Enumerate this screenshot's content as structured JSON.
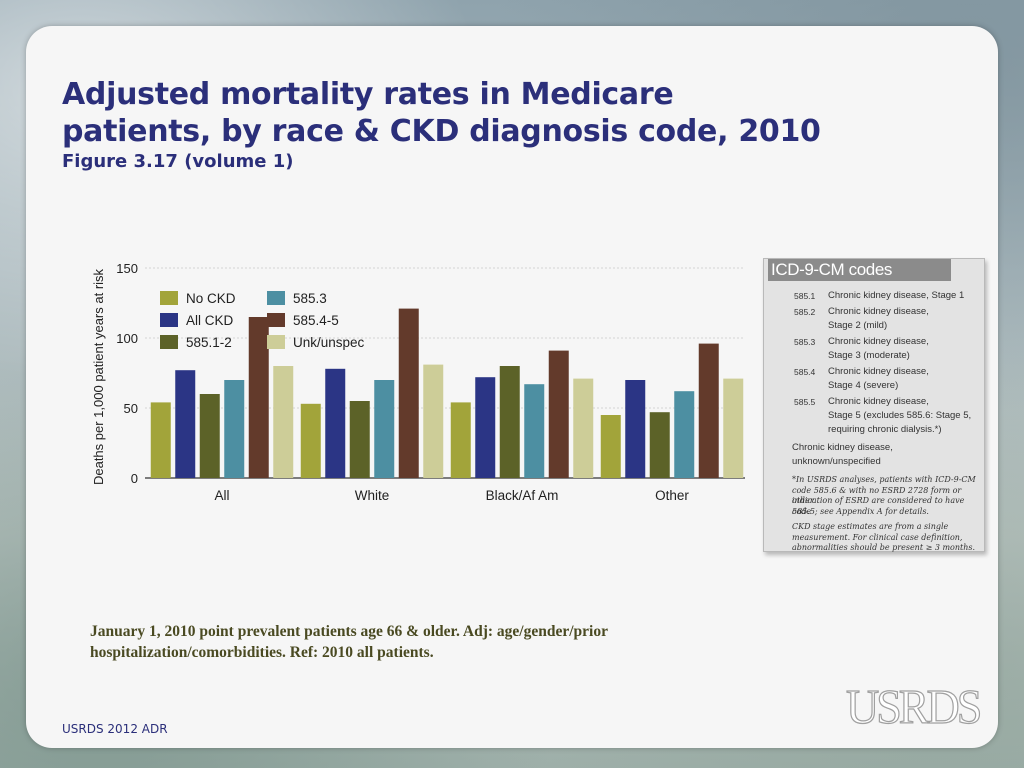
{
  "title": "Adjusted mortality rates in Medicare patients, by race & CKD diagnosis code, 2010",
  "subtitle": "Figure 3.17 (volume 1)",
  "chart_data": {
    "type": "bar",
    "categories": [
      "All",
      "White",
      "Black/Af Am",
      "Other"
    ],
    "series": [
      {
        "name": "No CKD",
        "color": "#a2a43a",
        "values": [
          54,
          53,
          54,
          45
        ]
      },
      {
        "name": "All CKD",
        "color": "#2b3585",
        "values": [
          77,
          78,
          72,
          70
        ]
      },
      {
        "name": "585.1-2",
        "color": "#5c6228",
        "values": [
          60,
          55,
          80,
          47
        ]
      },
      {
        "name": "585.3",
        "color": "#4d8fa2",
        "values": [
          70,
          70,
          67,
          62
        ]
      },
      {
        "name": "585.4-5",
        "color": "#633a2b",
        "values": [
          115,
          121,
          91,
          96
        ]
      },
      {
        "name": "Unk/unspec",
        "color": "#cdcd98",
        "values": [
          80,
          81,
          71,
          71
        ]
      }
    ],
    "ylabel": "Deaths per 1,000 patient years at risk",
    "xlabel": "",
    "ylim": [
      0,
      150
    ],
    "yticks": [
      0,
      50,
      100,
      150
    ],
    "legend": "upper-left, two columns"
  },
  "icd_box": {
    "title": "ICD-9-CM codes",
    "rows": [
      {
        "code": "585.1",
        "desc": [
          "Chronic kidney disease, Stage 1"
        ]
      },
      {
        "code": "585.2",
        "desc": [
          "Chronic kidney disease,",
          "Stage 2 (mild)"
        ]
      },
      {
        "code": "585.3",
        "desc": [
          "Chronic kidney disease,",
          "Stage 3 (moderate)"
        ]
      },
      {
        "code": "585.4",
        "desc": [
          "Chronic kidney disease,",
          "Stage 4 (severe)"
        ]
      },
      {
        "code": "585.5",
        "desc": [
          "Chronic kidney disease,",
          "Stage 5 (excludes 585.6: Stage 5,",
          "requiring chronic dialysis.*)"
        ]
      }
    ],
    "unspec": [
      "Chronic kidney disease,",
      "unknown/unspecified"
    ],
    "note1": [
      "*In USRDS analyses, patients with ICD-9-CM",
      "code 585.6 & with no ESRD 2728 form or other",
      "indication of ESRD are considered to have code",
      "585.5; see Appendix A for details."
    ],
    "note2": [
      "CKD stage estimates are from a single",
      "measurement. For clinical case definition,",
      "abnormalities should be present ≥ 3 months."
    ]
  },
  "footnote": "January 1, 2010 point prevalent patients age 66 & older. Adj: age/gender/prior hospitalization/comorbidities. Ref: 2010 all patients.",
  "footer": "USRDS 2012 ADR",
  "logo": "USRDS"
}
